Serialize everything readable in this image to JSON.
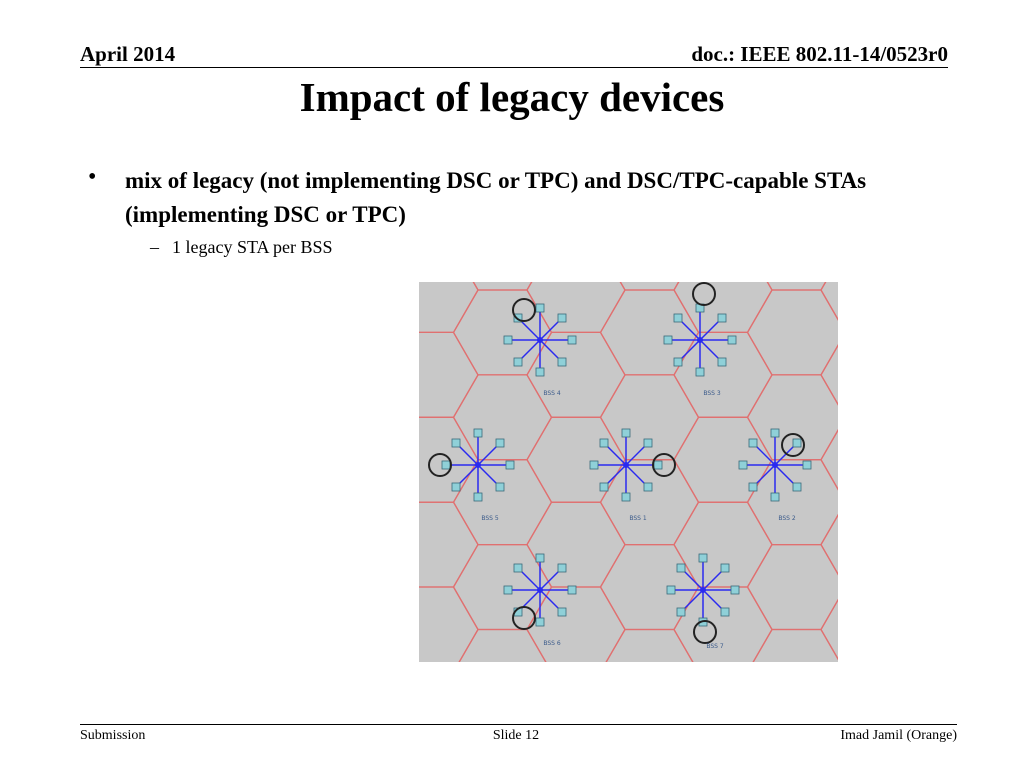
{
  "header": {
    "date": "April 2014",
    "doc_id": "doc.: IEEE 802.11-14/0523r0"
  },
  "title": "Impact of legacy devices",
  "bullets": [
    {
      "text": "mix of legacy (not implementing DSC or TPC) and DSC/TPC-capable STAs (implementing DSC or TPC)",
      "sub": [
        "1 legacy STA per BSS"
      ]
    }
  ],
  "figure": {
    "bss_labels": [
      "BSS 4",
      "BSS 3",
      "BSS 5",
      "BSS 1",
      "BSS 2",
      "BSS 6",
      "BSS 7"
    ]
  },
  "footer": {
    "left": "Submission",
    "center": "Slide 12",
    "right": "Imad Jamil (Orange)"
  }
}
